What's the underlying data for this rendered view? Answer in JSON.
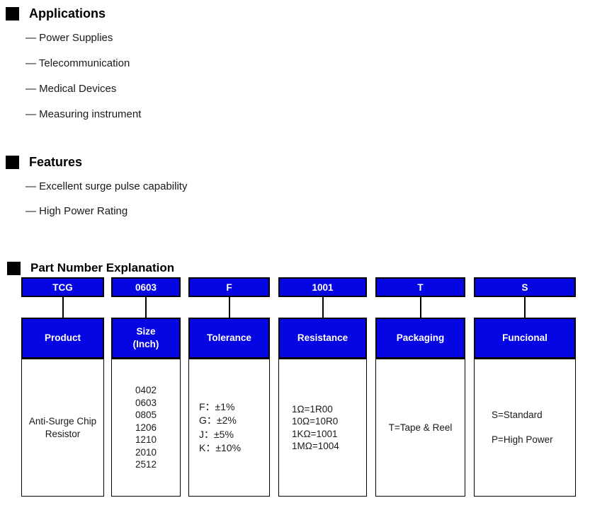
{
  "colors": {
    "accent_blue": "#0606E2",
    "box_text": "#ffffff",
    "bullet_black": "#000000"
  },
  "sections": {
    "applications": {
      "title": "Applications",
      "items": [
        "— Power Supplies",
        "— Telecommunication",
        "— Medical Devices",
        "— Measuring instrument"
      ]
    },
    "features": {
      "title": "Features",
      "items": [
        "— Excellent surge pulse capability",
        "— High Power Rating"
      ]
    },
    "part_number": {
      "title": "Part Number Explanation",
      "columns": [
        {
          "code": "TCG",
          "label": "Product",
          "details": [
            "Anti-Surge Chip Resistor"
          ]
        },
        {
          "code": "0603",
          "label": "Size",
          "label2": "(Inch)",
          "details": [
            "0402",
            "0603",
            "0805",
            "1206",
            "1210",
            "2010",
            "2512"
          ]
        },
        {
          "code": "F",
          "label": "Tolerance",
          "details": [
            "F：±1%",
            "G：±2%",
            "J：±5%",
            "K：±10%"
          ]
        },
        {
          "code": "1001",
          "label": "Resistance",
          "details": [
            "1Ω=1R00",
            "10Ω=10R0",
            "1KΩ=1001",
            "1MΩ=1004"
          ]
        },
        {
          "code": "T",
          "label": "Packaging",
          "details": [
            "T=Tape & Reel"
          ]
        },
        {
          "code": "S",
          "label": "Funcional",
          "details": [
            "S=Standard",
            "P=High Power"
          ]
        }
      ]
    }
  }
}
